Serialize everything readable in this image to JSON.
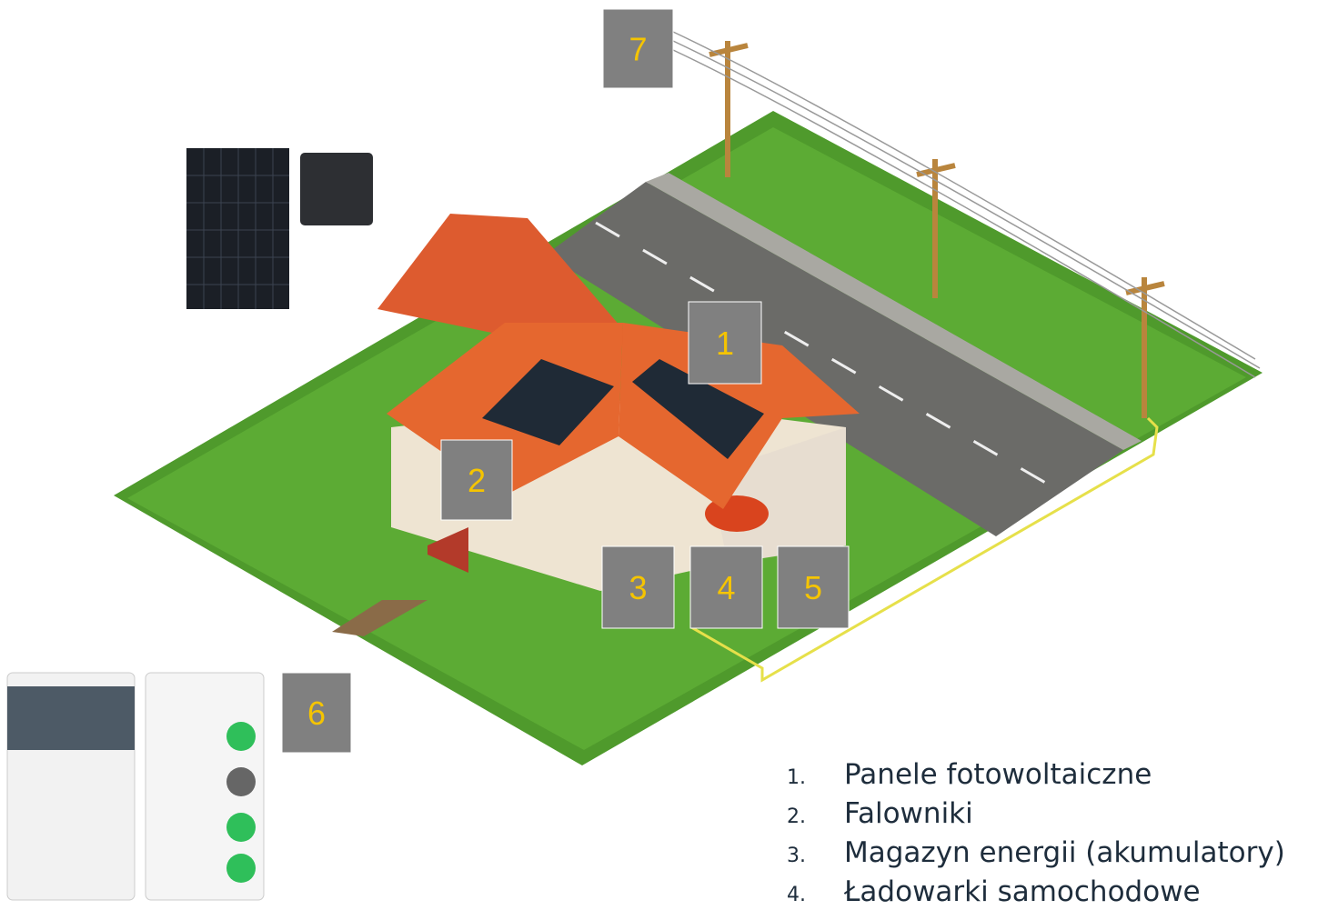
{
  "markers": [
    {
      "label": "1"
    },
    {
      "label": "2"
    },
    {
      "label": "3"
    },
    {
      "label": "4"
    },
    {
      "label": "5"
    },
    {
      "label": "6"
    },
    {
      "label": "7"
    }
  ],
  "legend": [
    {
      "number": "1.",
      "text": "Panele fotowoltaiczne"
    },
    {
      "number": "2.",
      "text": "Falowniki"
    },
    {
      "number": "3.",
      "text": "Magazyn energii (akumulatory)"
    },
    {
      "number": "4.",
      "text": "Ładowarki samochodowe"
    }
  ]
}
